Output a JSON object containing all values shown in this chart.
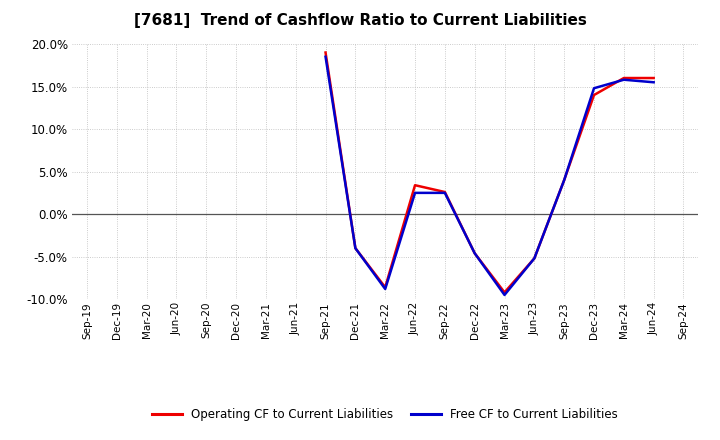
{
  "title": "[7681]  Trend of Cashflow Ratio to Current Liabilities",
  "x_labels": [
    "Sep-19",
    "Dec-19",
    "Mar-20",
    "Jun-20",
    "Sep-20",
    "Dec-20",
    "Mar-21",
    "Jun-21",
    "Sep-21",
    "Dec-21",
    "Mar-22",
    "Jun-22",
    "Sep-22",
    "Dec-22",
    "Mar-23",
    "Jun-23",
    "Sep-23",
    "Dec-23",
    "Mar-24",
    "Jun-24",
    "Sep-24"
  ],
  "operating_cf_full": [
    null,
    null,
    null,
    null,
    null,
    null,
    null,
    null,
    0.19,
    -0.04,
    -0.086,
    0.034,
    0.026,
    -0.046,
    -0.092,
    -0.052,
    0.04,
    0.14,
    0.16,
    0.16,
    null
  ],
  "free_cf_full": [
    null,
    null,
    null,
    null,
    null,
    null,
    null,
    null,
    0.185,
    -0.04,
    -0.088,
    0.025,
    0.025,
    -0.046,
    -0.095,
    -0.052,
    0.04,
    0.148,
    0.158,
    0.155,
    null
  ],
  "ylim": [
    -0.1,
    0.2
  ],
  "yticks": [
    -0.1,
    -0.05,
    0.0,
    0.05,
    0.1,
    0.15,
    0.2
  ],
  "operating_color": "#EE0000",
  "free_color": "#0000CC",
  "background_color": "#FFFFFF",
  "plot_bg_color": "#FFFFFF",
  "grid_color": "#BBBBBB",
  "title_fontsize": 11,
  "legend_label_op": "Operating CF to Current Liabilities",
  "legend_label_fr": "Free CF to Current Liabilities"
}
